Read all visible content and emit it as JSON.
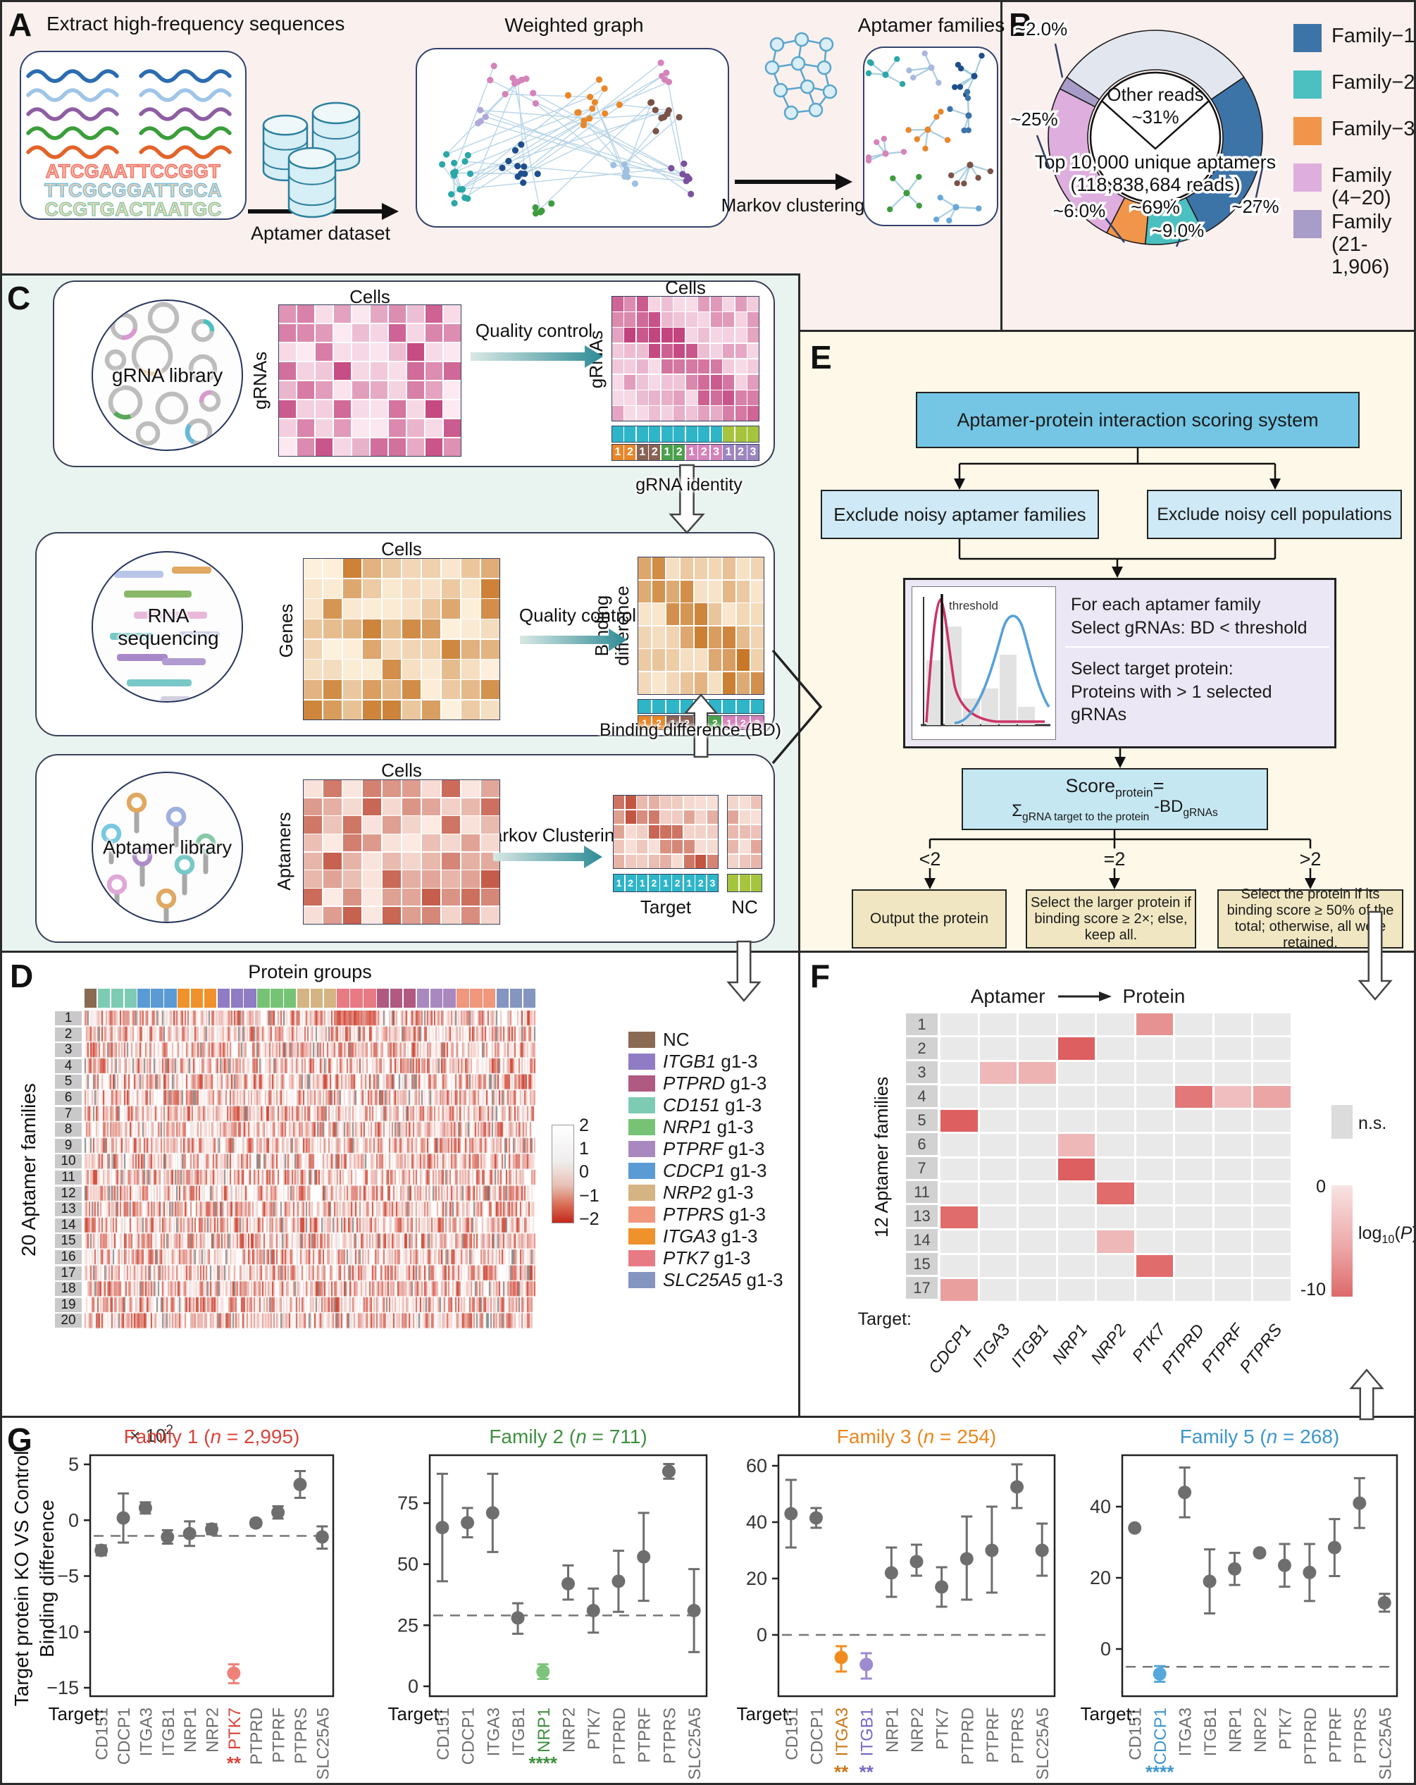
{
  "colors": {
    "panel_ab_bg": "#faf0ee",
    "panel_c_bg": "#e9f4f0",
    "panel_e_bg": "#fdf8e7",
    "border": "#2b2b2b",
    "teal_arrow_dark": "#2e8b96",
    "teal_arrow_light": "#d8e8e4",
    "gray_point": "#6e6e6e"
  },
  "panel_a": {
    "label": "A",
    "title": "Extract high-frequency sequences",
    "graph_title": "Weighted graph",
    "families_title": "Aptamer families",
    "dataset_label": "Aptamer dataset",
    "markov_label": "Markov clustering",
    "sequences": [
      {
        "text": "ATCGAATTCCGGT",
        "fill": "#fbb4a8",
        "outline": "#ee7263"
      },
      {
        "text": "TTCGCGGATTGCA",
        "fill": "#f6d0b0",
        "outline": "#74bfe0"
      },
      {
        "text": "CCGTGACTAATGC",
        "fill": "#f6d9b8",
        "outline": "#86c9a8"
      }
    ],
    "wave_colors": [
      "#2b6cb0",
      "#9fc5e8",
      "#8e5ea2",
      "#3a9e3a",
      "#e2642a"
    ],
    "cluster_colors": [
      "#2aa7a7",
      "#1f4e8c",
      "#d583bb",
      "#e8872a",
      "#7a5248",
      "#7a52a0",
      "#3f9b3f",
      "#9fc0e0",
      "#b0a8d8"
    ]
  },
  "panel_b": {
    "label": "B",
    "center_top1": "Other reads",
    "center_top2": "~31%",
    "center_bot1": "Top 10,000 unique aptamers",
    "center_bot2": "(118,838,684 reads)",
    "center_bot3": "~69%",
    "legend": [
      {
        "label": "Family−1",
        "color": "#3d74a8"
      },
      {
        "label": "Family−2",
        "color": "#4cc0c0"
      },
      {
        "label": "Family−3",
        "color": "#f0954a"
      },
      {
        "label": "Family (4−20)",
        "color": "#ddaede"
      },
      {
        "label": "Family (21-1,906)",
        "color": "#a89cc8"
      }
    ]
  },
  "panel_c": {
    "label": "C",
    "row1_circle": "gRNA library",
    "row1_top": "Cells",
    "row1_left": "gRNAs",
    "row1_arrow": "Quality control",
    "row1_out_top": "Cells",
    "row1_out_left": "gRNAs",
    "row1_below": "gRNA identity",
    "row2_circle": "RNA sequencing",
    "row2_top": "Cells",
    "row2_left": "Genes",
    "row2_arrow": "Quality control",
    "row2_out_left": "Binding difference",
    "row2_below": "Binding difference (BD)",
    "row3_circle": "Aptamer library",
    "row3_top": "Cells",
    "row3_left": "Aptamers",
    "row3_arrow": "Markov Clustering",
    "row3_target": "Target",
    "row3_nc": "NC",
    "strip1_numbers": [
      "1",
      "2",
      "1",
      "2",
      "1",
      "2",
      "1",
      "2",
      "3",
      "1",
      "2",
      "3"
    ],
    "strip1_number_colors": [
      "#e8872a",
      "#e8872a",
      "#8a6355",
      "#8a6355",
      "#4ba04b",
      "#4ba04b",
      "#d583bb",
      "#d583bb",
      "#d583bb",
      "#9c86c0",
      "#9c86c0",
      "#9c86c0"
    ],
    "strip1_top_colors": [
      "#2fb5c8",
      "#2fb5c8",
      "#2fb5c8",
      "#2fb5c8",
      "#2fb5c8",
      "#2fb5c8",
      "#2fb5c8",
      "#2fb5c8",
      "#2fb5c8",
      "#a6c43e",
      "#a6c43e",
      "#a6c43e"
    ],
    "strip2_numbers": [
      "1",
      "2",
      "1",
      "2",
      "1",
      "2",
      "1",
      "2",
      "3"
    ],
    "strip2_number_colors": [
      "#e8872a",
      "#e8872a",
      "#8a6355",
      "#8a6355",
      "#4ba04b",
      "#4ba04b",
      "#d583bb",
      "#d583bb",
      "#d583bb"
    ],
    "strip3_numbers": [
      "1",
      "2",
      "1",
      "2",
      "1",
      "2",
      "1",
      "2",
      "3"
    ],
    "nc_color": "#a6c43e",
    "teal": "#2fb5c8"
  },
  "panel_e": {
    "label": "E",
    "top_box": "Aptamer-protein interaction scoring system",
    "left_box": "Exclude noisy aptamer families",
    "right_box": "Exclude noisy cell populations",
    "threshold_label": "threshold",
    "crit1": "For each aptamer family",
    "crit2": "Select gRNAs: BD < threshold",
    "crit3": "Select target protein:",
    "crit4": "Proteins with > 1 selected gRNAs",
    "score": {
      "word": "Score",
      "sub": "protein",
      "eq": "=",
      "sigma": "Σ",
      "sigma_sub": "gRNA target to the protein",
      "term": "-BD",
      "term_sub": "gRNAs"
    },
    "branches": [
      "<2",
      "=2",
      ">2"
    ],
    "outcomes": [
      "Output the protein",
      "Select the larger protein  if binding score ≥ 2×; else, keep all.",
      "Select the protein if its binding score ≥ 50% of the total; otherwise, all were retained."
    ]
  },
  "panel_d": {
    "label": "D",
    "title": "Protein groups",
    "ylabel": "20 Aptamer families",
    "row_labels": [
      "1",
      "2",
      "3",
      "4",
      "5",
      "6",
      "7",
      "8",
      "9",
      "10",
      "11",
      "12",
      "13",
      "14",
      "15",
      "16",
      "17",
      "18",
      "19",
      "20"
    ],
    "colorbar_ticks": [
      "2",
      "1",
      "0",
      "−1",
      "−2"
    ],
    "column_groups": [
      {
        "name": "NC",
        "count": 1,
        "color": "#8a6a52"
      },
      {
        "name": "CD151",
        "count": 3,
        "color": "#7ecbb4"
      },
      {
        "name": "CDCP1",
        "count": 3,
        "color": "#5b9bd5"
      },
      {
        "name": "ITGA3",
        "count": 3,
        "color": "#f0922c"
      },
      {
        "name": "ITGB1",
        "count": 3,
        "color": "#8f7cc4"
      },
      {
        "name": "NRP1",
        "count": 3,
        "color": "#76c376"
      },
      {
        "name": "NRP2",
        "count": 3,
        "color": "#d4b483"
      },
      {
        "name": "PTK7",
        "count": 3,
        "color": "#e87a84"
      },
      {
        "name": "PTPRD",
        "count": 3,
        "color": "#b05a82"
      },
      {
        "name": "PTPRF",
        "count": 3,
        "color": "#a988c0"
      },
      {
        "name": "PTPRS",
        "count": 3,
        "color": "#f0977e"
      },
      {
        "name": "SLC25A5",
        "count": 3,
        "color": "#8495c0"
      }
    ],
    "legend": [
      {
        "gene": "NC",
        "suffix": "",
        "italic": false,
        "color": "#8a6a52"
      },
      {
        "gene": "ITGB1",
        "suffix": " g1-3",
        "italic": true,
        "color": "#8f7cc4"
      },
      {
        "gene": "PTPRD",
        "suffix": " g1-3",
        "italic": true,
        "color": "#b05a82"
      },
      {
        "gene": "CD151",
        "suffix": " g1-3",
        "italic": true,
        "color": "#7ecbb4"
      },
      {
        "gene": "NRP1",
        "suffix": " g1-3",
        "italic": true,
        "color": "#76c376"
      },
      {
        "gene": "PTPRF",
        "suffix": " g1-3",
        "italic": true,
        "color": "#a988c0"
      },
      {
        "gene": "CDCP1",
        "suffix": " g1-3",
        "italic": true,
        "color": "#5b9bd5"
      },
      {
        "gene": "NRP2",
        "suffix": " g1-3",
        "italic": true,
        "color": "#d4b483"
      },
      {
        "gene": "PTPRS",
        "suffix": " g1-3",
        "italic": true,
        "color": "#f0977e"
      },
      {
        "gene": "ITGA3",
        "suffix": " g1-3",
        "italic": true,
        "color": "#f0922c"
      },
      {
        "gene": "PTK7",
        "suffix": " g1-3",
        "italic": true,
        "color": "#e87a84"
      },
      {
        "gene": "SLC25A5",
        "suffix": " g1-3",
        "italic": true,
        "color": "#8495c0"
      }
    ]
  },
  "panel_f": {
    "label": "F",
    "title_left": "Aptamer",
    "title_right": "Protein",
    "ylabel": "12  Aptamer families",
    "target_prefix": "Target:",
    "legend_ns": "n.s.",
    "scale_top": "0",
    "scale_bottom": "-10",
    "scale_label": {
      "pre": "log",
      "sub": "10",
      "paren_open": "(",
      "p": "P",
      "paren_close": ")"
    }
  },
  "panel_g": {
    "label": "G",
    "ylabel_line1": "Target protein KO VS Control",
    "ylabel_line2": "Binding  difference",
    "unit": {
      "base": "× 10",
      "exp": "2"
    },
    "target_prefix": "Target:"
  },
  "chart_data": [
    {
      "id": "b_donut",
      "type": "pie",
      "title": "Read composition of top 10,000 unique aptamers",
      "segments": [
        {
          "name": "Other reads",
          "pct": 31,
          "label": "",
          "color": "#e2e6ee"
        },
        {
          "name": "Family-1",
          "pct": 27,
          "label": "~27%",
          "color": "#3d74a8"
        },
        {
          "name": "Family-2",
          "pct": 9,
          "label": "~9.0%",
          "color": "#4cc0c0"
        },
        {
          "name": "Family-3",
          "pct": 6,
          "label": "~6.0%",
          "color": "#f0954a"
        },
        {
          "name": "Family (4-20)",
          "pct": 25,
          "label": "~25%",
          "color": "#ddaede"
        },
        {
          "name": "Family (21-1,906)",
          "pct": 2,
          "label": "~2.0%",
          "color": "#a89cc8"
        }
      ]
    },
    {
      "id": "f_heatmap",
      "type": "heatmap",
      "rows": [
        "1",
        "2",
        "3",
        "4",
        "5",
        "6",
        "7",
        "11",
        "13",
        "14",
        "15",
        "17"
      ],
      "cols": [
        "CDCP1",
        "ITGA3",
        "ITGB1",
        "NRP1",
        "NRP2",
        "PTK7",
        "PTPRD",
        "PTPRF",
        "PTPRS"
      ],
      "ns_color": "#e9e9e9",
      "cells": [
        {
          "row": "1",
          "col": "PTK7",
          "log10p": -6
        },
        {
          "row": "2",
          "col": "NRP1",
          "log10p": -10
        },
        {
          "row": "3",
          "col": "ITGA3",
          "log10p": -3
        },
        {
          "row": "3",
          "col": "ITGB1",
          "log10p": -3.5
        },
        {
          "row": "4",
          "col": "PTPRD",
          "log10p": -8
        },
        {
          "row": "4",
          "col": "PTPRF",
          "log10p": -2.5
        },
        {
          "row": "4",
          "col": "PTPRS",
          "log10p": -4.5
        },
        {
          "row": "5",
          "col": "CDCP1",
          "log10p": -10
        },
        {
          "row": "6",
          "col": "NRP1",
          "log10p": -3
        },
        {
          "row": "7",
          "col": "NRP1",
          "log10p": -10
        },
        {
          "row": "11",
          "col": "NRP2",
          "log10p": -9
        },
        {
          "row": "13",
          "col": "CDCP1",
          "log10p": -9
        },
        {
          "row": "14",
          "col": "NRP2",
          "log10p": -3
        },
        {
          "row": "15",
          "col": "PTK7",
          "log10p": -9
        },
        {
          "row": "17",
          "col": "CDCP1",
          "log10p": -5
        }
      ],
      "scale": {
        "top": 0,
        "bottom": -10
      }
    },
    {
      "id": "g_dotplots",
      "type": "scatter",
      "categories": [
        "CD151",
        "CDCP1",
        "ITGA3",
        "ITGB1",
        "NRP1",
        "NRP2",
        "PTK7",
        "PTPRD",
        "PTPRF",
        "PTPRS",
        "SLC25A5"
      ],
      "plots": [
        {
          "family": "Family 1",
          "n": "2,995",
          "color": "#d9453c",
          "yticks": [
            5,
            0,
            -5,
            -10,
            -15
          ],
          "dashed": -1.4,
          "highlights": [
            {
              "target": "PTK7",
              "stars": "**",
              "color": "#d9453c",
              "point_color": "#ee8278"
            }
          ],
          "points": [
            {
              "t": "CD151",
              "v": -2.7,
              "lo": -3.15,
              "hi": -2.25
            },
            {
              "t": "CDCP1",
              "v": 0.2,
              "lo": -2.0,
              "hi": 2.4
            },
            {
              "t": "ITGA3",
              "v": 1.1,
              "lo": 0.6,
              "hi": 1.6
            },
            {
              "t": "ITGB1",
              "v": -1.5,
              "lo": -2.1,
              "hi": -0.9
            },
            {
              "t": "NRP1",
              "v": -1.2,
              "lo": -2.3,
              "hi": -0.1
            },
            {
              "t": "NRP2",
              "v": -0.8,
              "lo": -1.25,
              "hi": -0.35
            },
            {
              "t": "PTK7",
              "v": -13.7,
              "lo": -14.6,
              "hi": -12.9
            },
            {
              "t": "PTPRD",
              "v": -0.25,
              "lo": -0.55,
              "hi": 0.05
            },
            {
              "t": "PTPRF",
              "v": 0.7,
              "lo": 0.15,
              "hi": 1.25
            },
            {
              "t": "PTPRS",
              "v": 3.2,
              "lo": 2.0,
              "hi": 4.4
            },
            {
              "t": "SLC25A5",
              "v": -1.5,
              "lo": -2.55,
              "hi": -0.55
            }
          ]
        },
        {
          "family": "Family 2",
          "n": "711",
          "color": "#3f8f3f",
          "yticks": [
            75,
            50,
            25,
            0
          ],
          "dashed": 29,
          "highlights": [
            {
              "target": "NRP1",
              "stars": "****",
              "color": "#3f8f3f",
              "point_color": "#7cc47c"
            }
          ],
          "points": [
            {
              "t": "CD151",
              "v": 65,
              "lo": 43,
              "hi": 87
            },
            {
              "t": "CDCP1",
              "v": 67,
              "lo": 61,
              "hi": 73
            },
            {
              "t": "ITGA3",
              "v": 71,
              "lo": 55,
              "hi": 87
            },
            {
              "t": "ITGB1",
              "v": 28,
              "lo": 21.5,
              "hi": 34
            },
            {
              "t": "NRP1",
              "v": 6,
              "lo": 3,
              "hi": 9
            },
            {
              "t": "NRP2",
              "v": 42,
              "lo": 35.5,
              "hi": 49.5
            },
            {
              "t": "PTK7",
              "v": 31,
              "lo": 22,
              "hi": 40
            },
            {
              "t": "PTPRD",
              "v": 43,
              "lo": 30.5,
              "hi": 55.5
            },
            {
              "t": "PTPRF",
              "v": 53,
              "lo": 35,
              "hi": 71
            },
            {
              "t": "PTPRS",
              "v": 88,
              "lo": 85,
              "hi": 91
            },
            {
              "t": "SLC25A5",
              "v": 31,
              "lo": 14,
              "hi": 48
            }
          ]
        },
        {
          "family": "Family 3",
          "n": "254",
          "color": "#e8871e",
          "yticks": [
            60,
            40,
            20,
            0
          ],
          "dashed": 0,
          "highlights": [
            {
              "target": "ITGA3",
              "stars": "**",
              "color": "#c87715",
              "point_color": "#f08c1e"
            },
            {
              "target": "ITGB1",
              "stars": "**",
              "color": "#7668c4",
              "point_color": "#9d8ad0"
            }
          ],
          "points": [
            {
              "t": "CD151",
              "v": 43,
              "lo": 31,
              "hi": 55
            },
            {
              "t": "CDCP1",
              "v": 41.5,
              "lo": 38,
              "hi": 45
            },
            {
              "t": "ITGA3",
              "v": -8,
              "lo": -13,
              "hi": -4
            },
            {
              "t": "ITGB1",
              "v": -10.5,
              "lo": -15.5,
              "hi": -6.5
            },
            {
              "t": "NRP1",
              "v": 22,
              "lo": 13.5,
              "hi": 31
            },
            {
              "t": "NRP2",
              "v": 26,
              "lo": 21,
              "hi": 32
            },
            {
              "t": "PTK7",
              "v": 17,
              "lo": 10,
              "hi": 24
            },
            {
              "t": "PTPRD",
              "v": 27,
              "lo": 12.5,
              "hi": 42
            },
            {
              "t": "PTPRF",
              "v": 30,
              "lo": 15,
              "hi": 45.5
            },
            {
              "t": "PTPRS",
              "v": 52.5,
              "lo": 45,
              "hi": 60.5
            },
            {
              "t": "SLC25A5",
              "v": 30,
              "lo": 21,
              "hi": 39.5
            }
          ]
        },
        {
          "family": "Family 5",
          "n": "268",
          "color": "#3d96cc",
          "yticks": [
            40,
            20,
            0
          ],
          "dashed": -5,
          "highlights": [
            {
              "target": "CDCP1",
              "stars": "****",
              "color": "#3d96cc",
              "point_color": "#55a7dc"
            }
          ],
          "points": [
            {
              "t": "CD151",
              "v": 34,
              "lo": 34,
              "hi": 34
            },
            {
              "t": "CDCP1",
              "v": -7,
              "lo": -9.2,
              "hi": -4.8
            },
            {
              "t": "ITGA3",
              "v": 44,
              "lo": 37,
              "hi": 51
            },
            {
              "t": "ITGB1",
              "v": 19,
              "lo": 10,
              "hi": 28
            },
            {
              "t": "NRP1",
              "v": 22.5,
              "lo": 18,
              "hi": 27
            },
            {
              "t": "NRP2",
              "v": 27,
              "lo": 27,
              "hi": 27
            },
            {
              "t": "PTK7",
              "v": 23.5,
              "lo": 17.5,
              "hi": 29.5
            },
            {
              "t": "PTPRD",
              "v": 21.5,
              "lo": 13.5,
              "hi": 29.5
            },
            {
              "t": "PTPRF",
              "v": 28.5,
              "lo": 20.5,
              "hi": 36.5
            },
            {
              "t": "PTPRS",
              "v": 41,
              "lo": 34,
              "hi": 48
            },
            {
              "t": "SLC25A5",
              "v": 13,
              "lo": 10.5,
              "hi": 15.5
            }
          ]
        }
      ]
    }
  ]
}
